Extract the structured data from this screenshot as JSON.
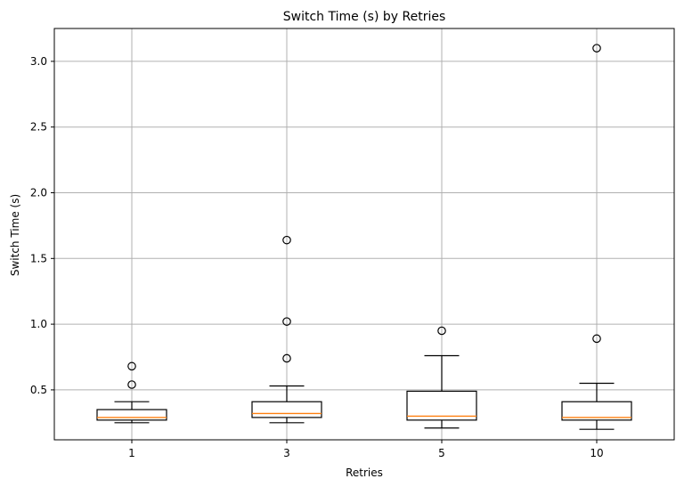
{
  "chart_data": {
    "type": "box",
    "title": "Switch Time (s) by Retries",
    "xlabel": "Retries",
    "ylabel": "Switch Time (s)",
    "categories": [
      "1",
      "3",
      "5",
      "10"
    ],
    "ylim": [
      0.12,
      3.25
    ],
    "yticks": [
      0.5,
      1.0,
      1.5,
      2.0,
      2.5,
      3.0
    ],
    "ytick_labels": [
      "0.5",
      "1.0",
      "1.5",
      "2.0",
      "2.5",
      "3.0"
    ],
    "grid": true,
    "boxes": [
      {
        "category": "1",
        "whisker_low": 0.25,
        "q1": 0.27,
        "median": 0.29,
        "q3": 0.35,
        "whisker_high": 0.41,
        "outliers": [
          0.54,
          0.68
        ]
      },
      {
        "category": "3",
        "whisker_low": 0.25,
        "q1": 0.29,
        "median": 0.32,
        "q3": 0.41,
        "whisker_high": 0.53,
        "outliers": [
          0.74,
          1.02,
          1.64
        ]
      },
      {
        "category": "5",
        "whisker_low": 0.21,
        "q1": 0.27,
        "median": 0.3,
        "q3": 0.49,
        "whisker_high": 0.76,
        "outliers": [
          0.95
        ]
      },
      {
        "category": "10",
        "whisker_low": 0.2,
        "q1": 0.27,
        "median": 0.29,
        "q3": 0.41,
        "whisker_high": 0.55,
        "outliers": [
          0.89,
          3.1
        ]
      }
    ],
    "colors": {
      "box": "#000000",
      "median": "#ff7f0e",
      "grid": "#b0b0b0"
    }
  }
}
